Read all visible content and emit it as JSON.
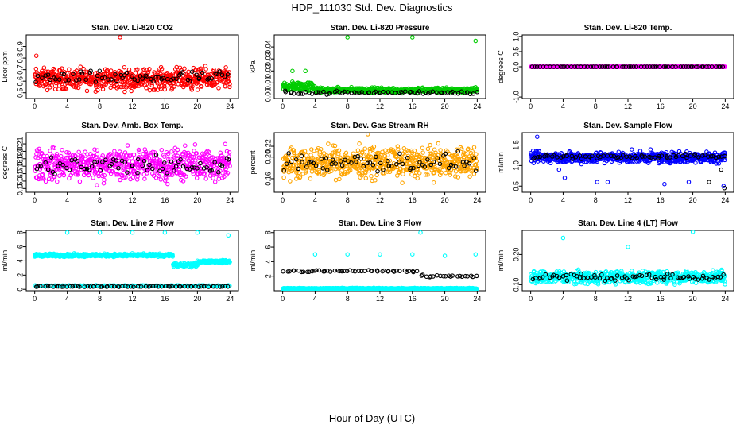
{
  "figure": {
    "title": "HDP_111030  Std. Dev. Diagnostics",
    "xlabel": "Hour of Day (UTC)"
  },
  "chart_data": [
    {
      "type": "scatter",
      "title": "Stan. Dev. Li-820 CO2",
      "ylabel": "Licor ppm",
      "xlim": [
        0,
        24
      ],
      "xticks": [
        0,
        4,
        8,
        12,
        16,
        20,
        24
      ],
      "ylim": [
        0.45,
        1.0
      ],
      "yticks": [
        0.5,
        0.6,
        0.7,
        0.8,
        0.9
      ],
      "ytick_labels": [
        "0.5",
        "0.6",
        "0.7",
        "0.8",
        "0.9"
      ],
      "colors": {
        "high_freq": "#ff0000",
        "hourly": "#000000"
      },
      "high_freq": {
        "regime": [
          {
            "from": 0,
            "to": 24,
            "center": 0.62,
            "spread": 0.13
          }
        ],
        "outliers": [
          {
            "x": 10.5,
            "y": 0.98
          },
          {
            "x": 0.2,
            "y": 0.82
          }
        ]
      },
      "hourly": {
        "base": 0.63,
        "spread": 0.08
      }
    },
    {
      "type": "scatter",
      "title": "Stan. Dev. Li-820 Pressure",
      "ylabel": "kPa",
      "xlim": [
        0,
        24
      ],
      "xticks": [
        0,
        4,
        8,
        12,
        16,
        20,
        24
      ],
      "ylim": [
        -0.003,
        0.05
      ],
      "yticks": [
        0.0,
        0.01,
        0.02,
        0.03,
        0.04
      ],
      "ytick_labels": [
        "0.00",
        "0.01",
        "0.02",
        "0.03",
        "0.04"
      ],
      "colors": {
        "high_freq": "#00cc00",
        "hourly": "#000000"
      },
      "high_freq": {
        "regime": [
          {
            "from": 0,
            "to": 4,
            "center": 0.007,
            "spread": 0.006
          },
          {
            "from": 4,
            "to": 24,
            "center": 0.004,
            "spread": 0.003
          }
        ],
        "outliers": [
          {
            "x": 8,
            "y": 0.048
          },
          {
            "x": 16,
            "y": 0.048
          },
          {
            "x": 23.8,
            "y": 0.045
          },
          {
            "x": 1.2,
            "y": 0.02
          },
          {
            "x": 2.8,
            "y": 0.02
          }
        ]
      },
      "hourly": {
        "base": 0.002,
        "spread": 0.002
      }
    },
    {
      "type": "scatter",
      "title": "Stan. Dev. Li-820 Temp.",
      "ylabel": "degrees C",
      "xlim": [
        0,
        24
      ],
      "xticks": [
        0,
        4,
        8,
        12,
        16,
        20,
        24
      ],
      "ylim": [
        -1.05,
        1.05
      ],
      "yticks": [
        -1.0,
        0.0,
        0.5,
        1.0
      ],
      "ytick_labels": [
        "-1.0",
        "0.0",
        "0.5",
        "1.0"
      ],
      "colors": {
        "high_freq": "#ff00ff",
        "hourly": "#000000"
      },
      "high_freq": {
        "regime": [
          {
            "from": 0,
            "to": 24,
            "center": 0.0,
            "spread": 0.0
          }
        ],
        "outliers": []
      },
      "hourly": {
        "base": 0.0,
        "spread": 0.0
      }
    },
    {
      "type": "scatter",
      "title": "Stan. Dev. Amb. Box Temp.",
      "ylabel": "degrees C",
      "xlim": [
        0,
        24
      ],
      "xticks": [
        0,
        4,
        8,
        12,
        16,
        20,
        24
      ],
      "ylim": [
        0.145,
        0.225
      ],
      "yticks": [
        0.15,
        0.16,
        0.17,
        0.18,
        0.19,
        0.2,
        0.21
      ],
      "ytick_labels": [
        "0.15",
        "0.16",
        "0.17",
        "0.18",
        "0.19",
        "0.20",
        "0.21"
      ],
      "colors": {
        "high_freq": "#ff00ff",
        "hourly": "#000000"
      },
      "high_freq": {
        "regime": [
          {
            "from": 0,
            "to": 24,
            "center": 0.182,
            "spread": 0.032
          }
        ],
        "outliers": []
      },
      "hourly": {
        "base": 0.18,
        "spread": 0.02
      }
    },
    {
      "type": "scatter",
      "title": "Stan. Dev. Gas Stream RH",
      "ylabel": "percent",
      "xlim": [
        0,
        24
      ],
      "xticks": [
        0,
        4,
        8,
        12,
        16,
        20,
        24
      ],
      "ylim": [
        0.135,
        0.245
      ],
      "yticks": [
        0.16,
        0.2,
        0.22
      ],
      "ytick_labels": [
        "0.16",
        "0.20",
        "0.22"
      ],
      "colors": {
        "high_freq": "#ffa500",
        "hourly": "#000000"
      },
      "high_freq": {
        "regime": [
          {
            "from": 0,
            "to": 24,
            "center": 0.19,
            "spread": 0.04
          }
        ],
        "outliers": [
          {
            "x": 10.5,
            "y": 0.242
          }
        ]
      },
      "hourly": {
        "base": 0.19,
        "spread": 0.025
      }
    },
    {
      "type": "scatter",
      "title": "Stan. Dev. Sample Flow",
      "ylabel": "ml/min",
      "xlim": [
        0,
        24
      ],
      "xticks": [
        0,
        4,
        8,
        12,
        16,
        20,
        24
      ],
      "ylim": [
        0.35,
        1.8
      ],
      "yticks": [
        0.5,
        1.0,
        1.5
      ],
      "ytick_labels": [
        "0.5",
        "1.0",
        "1.5"
      ],
      "colors": {
        "high_freq": "#0000ff",
        "hourly": "#000000"
      },
      "high_freq": {
        "regime": [
          {
            "from": 0,
            "to": 24,
            "center": 1.2,
            "spread": 0.2
          }
        ],
        "outliers": [
          {
            "x": 0.8,
            "y": 1.7
          },
          {
            "x": 3.5,
            "y": 0.9
          },
          {
            "x": 4.2,
            "y": 0.7
          },
          {
            "x": 8.2,
            "y": 0.6
          },
          {
            "x": 9.5,
            "y": 0.6
          },
          {
            "x": 16.5,
            "y": 0.55
          },
          {
            "x": 19.5,
            "y": 0.6
          },
          {
            "x": 23.8,
            "y": 0.5
          }
        ]
      },
      "hourly": {
        "base": 1.22,
        "spread": 0.08,
        "outliers": [
          {
            "x": 23.9,
            "y": 0.45
          },
          {
            "x": 23.5,
            "y": 0.9
          },
          {
            "x": 22.0,
            "y": 0.6
          }
        ]
      }
    },
    {
      "type": "scatter",
      "title": "Stan. Dev. Line 2 Flow",
      "ylabel": "ml/min",
      "xlim": [
        0,
        24
      ],
      "xticks": [
        0,
        4,
        8,
        12,
        16,
        20,
        24
      ],
      "ylim": [
        -0.2,
        8.3
      ],
      "yticks": [
        0,
        2,
        4,
        6,
        8
      ],
      "ytick_labels": [
        "0",
        "2",
        "4",
        "6",
        "8"
      ],
      "colors": {
        "high_freq": "#00ffff",
        "hourly": "#000000"
      },
      "high_freq": {
        "regime": [
          {
            "from": 0,
            "to": 17,
            "center": 4.8,
            "spread": 0.3
          },
          {
            "from": 17,
            "to": 20,
            "center": 3.4,
            "spread": 0.4
          },
          {
            "from": 20,
            "to": 24,
            "center": 3.9,
            "spread": 0.3
          }
        ],
        "outliers": [
          {
            "x": 4,
            "y": 8
          },
          {
            "x": 8,
            "y": 8
          },
          {
            "x": 12,
            "y": 8
          },
          {
            "x": 16,
            "y": 8
          },
          {
            "x": 20,
            "y": 8
          },
          {
            "x": 23.8,
            "y": 7.6
          }
        ]
      },
      "hourly": {
        "base": 0.4,
        "spread": 0.08
      },
      "floor": {
        "center": 0.5,
        "spread": 0.1
      }
    },
    {
      "type": "scatter",
      "title": "Stan. Dev. Line 3 Flow",
      "ylabel": "ml/min",
      "xlim": [
        0,
        24
      ],
      "xticks": [
        0,
        4,
        8,
        12,
        16,
        20,
        24
      ],
      "ylim": [
        0.0,
        8.3
      ],
      "yticks": [
        2,
        4,
        6,
        8
      ],
      "ytick_labels": [
        "2",
        "4",
        "6",
        "8"
      ],
      "colors": {
        "high_freq": "#00ffff",
        "hourly": "#000000"
      },
      "high_freq": {
        "regime": [
          {
            "from": 0,
            "to": 24,
            "center": 0.3,
            "spread": 0.12
          }
        ],
        "outliers": [
          {
            "x": 4,
            "y": 5
          },
          {
            "x": 8,
            "y": 5
          },
          {
            "x": 12,
            "y": 5
          },
          {
            "x": 16,
            "y": 5
          },
          {
            "x": 17,
            "y": 8
          },
          {
            "x": 20,
            "y": 4.8
          },
          {
            "x": 23.8,
            "y": 5
          }
        ]
      },
      "hourly": {
        "base": 2.7,
        "spread": 0.2,
        "second": {
          "from": 17,
          "to": 24,
          "center": 2.0,
          "spread": 0.2
        }
      }
    },
    {
      "type": "scatter",
      "title": "Stan. Dev. Line 4 (LT) Flow",
      "ylabel": "ml/min",
      "xlim": [
        0,
        24
      ],
      "xticks": [
        0,
        4,
        8,
        12,
        16,
        20,
        24
      ],
      "ylim": [
        0.08,
        0.28
      ],
      "yticks": [
        0.1,
        0.2
      ],
      "ytick_labels": [
        "0.10",
        "0.20"
      ],
      "colors": {
        "high_freq": "#00ffff",
        "hourly": "#000000"
      },
      "high_freq": {
        "regime": [
          {
            "from": 0,
            "to": 24,
            "center": 0.125,
            "spread": 0.03
          }
        ],
        "outliers": [
          {
            "x": 4,
            "y": 0.255
          },
          {
            "x": 12,
            "y": 0.225
          },
          {
            "x": 20,
            "y": 0.275
          }
        ]
      },
      "hourly": {
        "base": 0.125,
        "spread": 0.018
      }
    }
  ]
}
